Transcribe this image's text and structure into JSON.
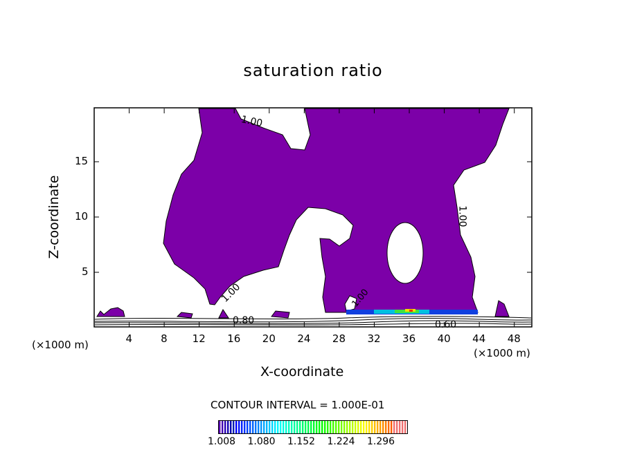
{
  "chart_data": {
    "type": "heatmap",
    "title": "saturation ratio",
    "xlabel": "X-coordinate",
    "ylabel": "Z-coordinate",
    "x_unit": "(×1000 m)",
    "y_unit": "(×1000 m)",
    "xlim": [
      0,
      50
    ],
    "ylim": [
      0,
      20
    ],
    "xticks": [
      "4",
      "8",
      "12",
      "16",
      "20",
      "24",
      "28",
      "32",
      "36",
      "40",
      "44",
      "48"
    ],
    "xtick_values": [
      4,
      8,
      12,
      16,
      20,
      24,
      28,
      32,
      36,
      40,
      44,
      48
    ],
    "yticks": [
      "5",
      "10",
      "15"
    ],
    "ytick_values": [
      5,
      10,
      15
    ],
    "contour_labels": [
      "1.00",
      "1.00",
      "1.00",
      "1.00",
      "0.80",
      "0.60"
    ],
    "contour_interval": "CONTOUR INTERVAL = 1.000E-01",
    "colorbar": {
      "labels": [
        "1.008",
        "1.080",
        "1.152",
        "1.224",
        "1.296"
      ],
      "min": 1.008,
      "max": 1.33
    },
    "colors": {
      "fill": "#7c00a8"
    }
  }
}
